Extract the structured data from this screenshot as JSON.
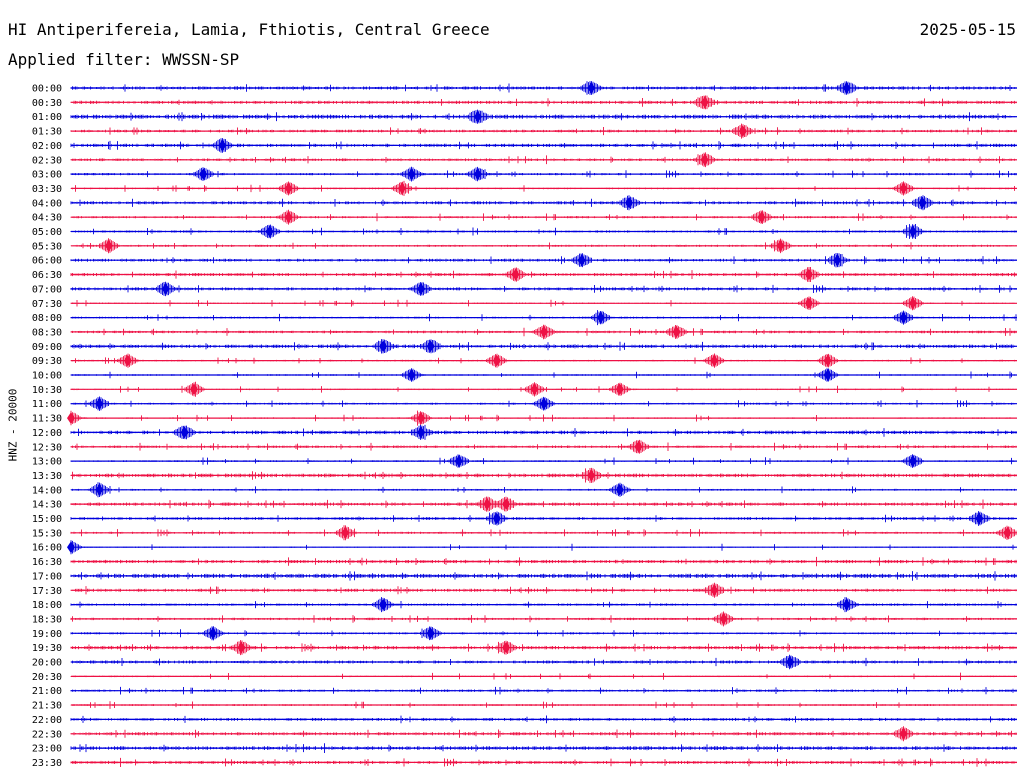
{
  "header": {
    "station": "HI Antiperifereia, Lamia, Fthiotis, Central Greece",
    "date": "2025-05-15",
    "filter": "Applied filter: WWSSN-SP"
  },
  "chart_data": {
    "type": "line",
    "subtype": "helicorder",
    "ylabel": "HNZ - 20000",
    "colors": [
      "#0000dd",
      "#ee1144"
    ],
    "rows": [
      {
        "label": "00:00",
        "events": [
          0.55,
          0.82
        ]
      },
      {
        "label": "00:30",
        "events": [
          0.67
        ]
      },
      {
        "label": "01:00",
        "events": [
          0.43
        ]
      },
      {
        "label": "01:30",
        "events": [
          0.71
        ]
      },
      {
        "label": "02:00",
        "events": [
          0.16
        ]
      },
      {
        "label": "02:30",
        "events": [
          0.67
        ]
      },
      {
        "label": "03:00",
        "events": [
          0.14,
          0.36,
          0.43
        ]
      },
      {
        "label": "03:30",
        "events": [
          0.23,
          0.35,
          0.88
        ]
      },
      {
        "label": "04:00",
        "events": [
          0.59,
          0.9
        ]
      },
      {
        "label": "04:30",
        "events": [
          0.23,
          0.73
        ]
      },
      {
        "label": "05:00",
        "events": [
          0.21,
          0.89
        ]
      },
      {
        "label": "05:30",
        "events": [
          0.04,
          0.75
        ]
      },
      {
        "label": "06:00",
        "events": [
          0.54,
          0.81
        ]
      },
      {
        "label": "06:30",
        "events": [
          0.47,
          0.78
        ]
      },
      {
        "label": "07:00",
        "events": [
          0.1,
          0.37
        ]
      },
      {
        "label": "07:30",
        "events": [
          0.78,
          0.89
        ]
      },
      {
        "label": "08:00",
        "events": [
          0.56,
          0.88
        ]
      },
      {
        "label": "08:30",
        "events": [
          0.5,
          0.64
        ]
      },
      {
        "label": "09:00",
        "events": [
          0.33,
          0.38
        ]
      },
      {
        "label": "09:30",
        "events": [
          0.06,
          0.45,
          0.68,
          0.8
        ]
      },
      {
        "label": "10:00",
        "events": [
          0.36,
          0.8
        ]
      },
      {
        "label": "10:30",
        "events": [
          0.13,
          0.49,
          0.58
        ]
      },
      {
        "label": "11:00",
        "events": [
          0.03,
          0.5
        ]
      },
      {
        "label": "11:30",
        "events": [
          0.0,
          0.37
        ]
      },
      {
        "label": "12:00",
        "events": [
          0.12,
          0.37
        ]
      },
      {
        "label": "12:30",
        "events": [
          0.6
        ]
      },
      {
        "label": "13:00",
        "events": [
          0.41,
          0.89
        ]
      },
      {
        "label": "13:30",
        "events": [
          0.55
        ]
      },
      {
        "label": "14:00",
        "events": [
          0.03,
          0.58
        ]
      },
      {
        "label": "14:30",
        "events": [
          0.44,
          0.46
        ]
      },
      {
        "label": "15:00",
        "events": [
          0.45,
          0.96
        ]
      },
      {
        "label": "15:30",
        "events": [
          0.29,
          0.99
        ]
      },
      {
        "label": "16:00",
        "events": [
          0.0
        ]
      },
      {
        "label": "16:30",
        "events": []
      },
      {
        "label": "17:00",
        "events": []
      },
      {
        "label": "17:30",
        "events": [
          0.68
        ]
      },
      {
        "label": "18:00",
        "events": [
          0.33,
          0.82
        ]
      },
      {
        "label": "18:30",
        "events": [
          0.69
        ]
      },
      {
        "label": "19:00",
        "events": [
          0.15,
          0.38
        ]
      },
      {
        "label": "19:30",
        "events": [
          0.18,
          0.46
        ]
      },
      {
        "label": "20:00",
        "events": [
          0.76
        ]
      },
      {
        "label": "20:30",
        "events": []
      },
      {
        "label": "21:00",
        "events": []
      },
      {
        "label": "21:30",
        "events": []
      },
      {
        "label": "22:00",
        "events": []
      },
      {
        "label": "22:30",
        "events": [
          0.88
        ]
      },
      {
        "label": "23:00",
        "events": []
      },
      {
        "label": "23:30",
        "events": []
      }
    ]
  }
}
